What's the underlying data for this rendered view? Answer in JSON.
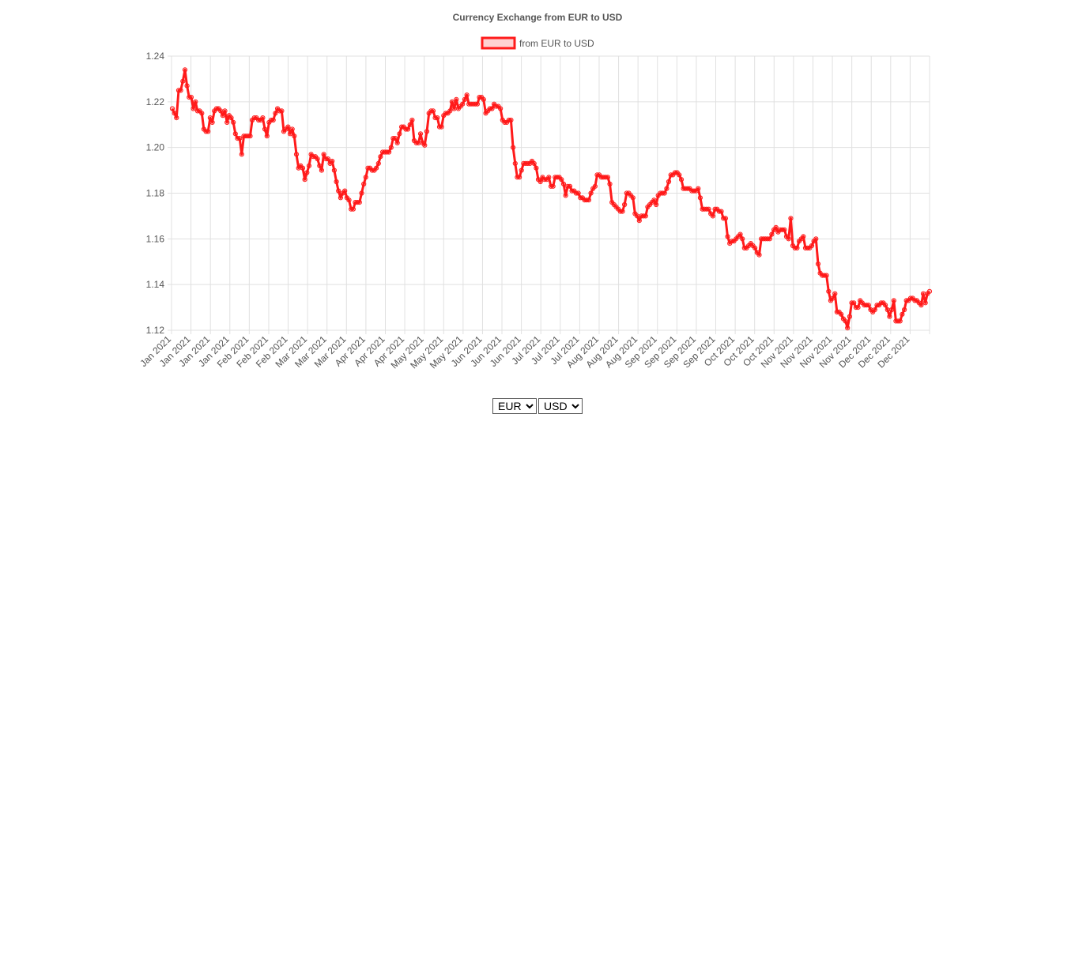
{
  "chart_data": {
    "type": "line",
    "title": "Currency Exchange from EUR to USD",
    "series": [
      {
        "name": "from EUR to USD",
        "color": "#ff1a1a",
        "y": [
          1.217,
          1.215,
          1.213,
          1.225,
          1.225,
          1.229,
          1.234,
          1.227,
          1.222,
          1.222,
          1.217,
          1.22,
          1.216,
          1.216,
          1.215,
          1.208,
          1.207,
          1.207,
          1.213,
          1.211,
          1.216,
          1.217,
          1.217,
          1.216,
          1.214,
          1.216,
          1.211,
          1.214,
          1.213,
          1.211,
          1.206,
          1.204,
          1.204,
          1.197,
          1.205,
          1.205,
          1.205,
          1.205,
          1.212,
          1.213,
          1.213,
          1.212,
          1.212,
          1.213,
          1.208,
          1.205,
          1.211,
          1.212,
          1.212,
          1.215,
          1.217,
          1.216,
          1.216,
          1.207,
          1.208,
          1.209,
          1.206,
          1.208,
          1.205,
          1.197,
          1.191,
          1.192,
          1.191,
          1.186,
          1.189,
          1.192,
          1.197,
          1.196,
          1.196,
          1.195,
          1.192,
          1.19,
          1.197,
          1.195,
          1.195,
          1.193,
          1.194,
          1.19,
          1.185,
          1.181,
          1.178,
          1.18,
          1.181,
          1.178,
          1.177,
          1.173,
          1.173,
          1.176,
          1.176,
          1.176,
          1.18,
          1.184,
          1.187,
          1.191,
          1.191,
          1.19,
          1.19,
          1.191,
          1.193,
          1.196,
          1.198,
          1.198,
          1.198,
          1.198,
          1.2,
          1.204,
          1.204,
          1.202,
          1.206,
          1.209,
          1.209,
          1.208,
          1.208,
          1.21,
          1.212,
          1.203,
          1.202,
          1.202,
          1.206,
          1.202,
          1.201,
          1.207,
          1.215,
          1.216,
          1.216,
          1.213,
          1.213,
          1.209,
          1.209,
          1.214,
          1.215,
          1.215,
          1.216,
          1.22,
          1.217,
          1.221,
          1.217,
          1.218,
          1.219,
          1.221,
          1.223,
          1.219,
          1.219,
          1.219,
          1.219,
          1.219,
          1.222,
          1.222,
          1.221,
          1.215,
          1.216,
          1.217,
          1.217,
          1.219,
          1.218,
          1.218,
          1.217,
          1.212,
          1.211,
          1.211,
          1.212,
          1.212,
          1.2,
          1.193,
          1.187,
          1.187,
          1.19,
          1.193,
          1.193,
          1.193,
          1.193,
          1.194,
          1.193,
          1.191,
          1.186,
          1.185,
          1.187,
          1.186,
          1.186,
          1.187,
          1.183,
          1.183,
          1.187,
          1.187,
          1.187,
          1.186,
          1.184,
          1.179,
          1.183,
          1.183,
          1.181,
          1.181,
          1.18,
          1.18,
          1.178,
          1.178,
          1.177,
          1.177,
          1.177,
          1.18,
          1.182,
          1.183,
          1.188,
          1.188,
          1.187,
          1.187,
          1.187,
          1.187,
          1.184,
          1.176,
          1.175,
          1.174,
          1.173,
          1.172,
          1.172,
          1.175,
          1.18,
          1.18,
          1.179,
          1.178,
          1.171,
          1.17,
          1.168,
          1.17,
          1.17,
          1.17,
          1.174,
          1.175,
          1.176,
          1.177,
          1.175,
          1.179,
          1.18,
          1.18,
          1.18,
          1.182,
          1.185,
          1.188,
          1.188,
          1.189,
          1.189,
          1.188,
          1.186,
          1.182,
          1.182,
          1.182,
          1.182,
          1.181,
          1.181,
          1.181,
          1.182,
          1.178,
          1.173,
          1.173,
          1.173,
          1.173,
          1.171,
          1.17,
          1.173,
          1.173,
          1.172,
          1.172,
          1.169,
          1.169,
          1.161,
          1.158,
          1.159,
          1.159,
          1.16,
          1.161,
          1.162,
          1.16,
          1.156,
          1.156,
          1.157,
          1.158,
          1.157,
          1.156,
          1.154,
          1.153,
          1.16,
          1.16,
          1.16,
          1.16,
          1.16,
          1.162,
          1.164,
          1.165,
          1.163,
          1.164,
          1.164,
          1.164,
          1.161,
          1.16,
          1.169,
          1.157,
          1.156,
          1.156,
          1.159,
          1.16,
          1.161,
          1.156,
          1.156,
          1.156,
          1.157,
          1.159,
          1.16,
          1.149,
          1.145,
          1.144,
          1.144,
          1.144,
          1.137,
          1.133,
          1.134,
          1.136,
          1.128,
          1.128,
          1.127,
          1.125,
          1.124,
          1.121,
          1.126,
          1.132,
          1.132,
          1.13,
          1.13,
          1.133,
          1.132,
          1.131,
          1.131,
          1.131,
          1.129,
          1.128,
          1.129,
          1.131,
          1.131,
          1.132,
          1.132,
          1.131,
          1.129,
          1.126,
          1.129,
          1.133,
          1.124,
          1.124,
          1.124,
          1.127,
          1.129,
          1.133,
          1.133,
          1.134,
          1.134,
          1.133,
          1.133,
          1.132,
          1.131,
          1.136,
          1.132,
          1.136,
          1.137
        ]
      }
    ],
    "x_tick_labels": [
      "Jan 2021",
      "Jan 2021",
      "Jan 2021",
      "Jan 2021",
      "Feb 2021",
      "Feb 2021",
      "Feb 2021",
      "Mar 2021",
      "Mar 2021",
      "Mar 2021",
      "Apr 2021",
      "Apr 2021",
      "Apr 2021",
      "May 2021",
      "May 2021",
      "May 2021",
      "Jun 2021",
      "Jun 2021",
      "Jun 2021",
      "Jul 2021",
      "Jul 2021",
      "Jul 2021",
      "Aug 2021",
      "Aug 2021",
      "Aug 2021",
      "Sep 2021",
      "Sep 2021",
      "Sep 2021",
      "Sep 2021",
      "Oct 2021",
      "Oct 2021",
      "Oct 2021",
      "Nov 2021",
      "Nov 2021",
      "Nov 2021",
      "Nov 2021",
      "Dec 2021",
      "Dec 2021",
      "Dec 2021"
    ],
    "y_ticks": [
      1.12,
      1.14,
      1.16,
      1.18,
      1.2,
      1.22,
      1.24
    ],
    "ylim": [
      1.12,
      1.24
    ],
    "xlabel": "",
    "ylabel": "",
    "grid": true,
    "legend_position": "top"
  },
  "controls": {
    "from_currency": {
      "selected": "EUR",
      "options": [
        "EUR"
      ]
    },
    "to_currency": {
      "selected": "USD",
      "options": [
        "USD"
      ]
    }
  }
}
